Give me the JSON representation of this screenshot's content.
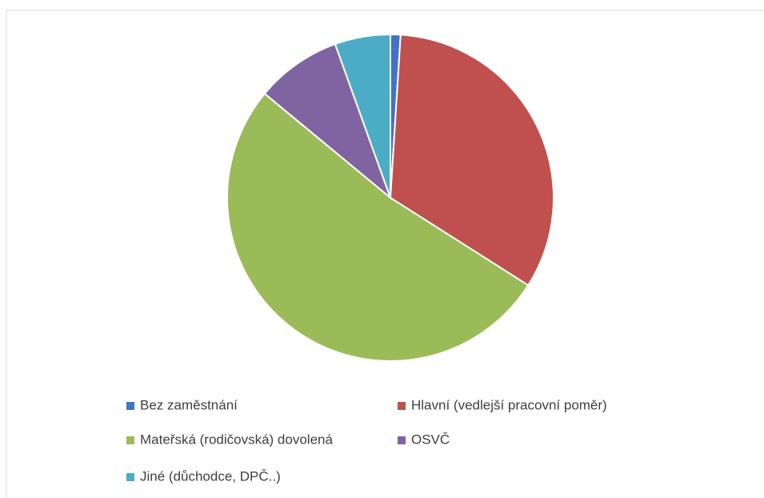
{
  "chart_data": {
    "type": "pie",
    "categories": [
      "Bez zaměstnání",
      "Hlavní (vedlejší pracovní poměr)",
      "Mateřská (rodičovská) dovolená",
      "OSVČ",
      "Jiné (důchodce, DPČ..)"
    ],
    "values": [
      1,
      33,
      52,
      8.5,
      5.5
    ],
    "colors": [
      "#4472c4",
      "#c0504d",
      "#9bbb59",
      "#8064a2",
      "#4bacc6"
    ],
    "legend": "bottom"
  }
}
